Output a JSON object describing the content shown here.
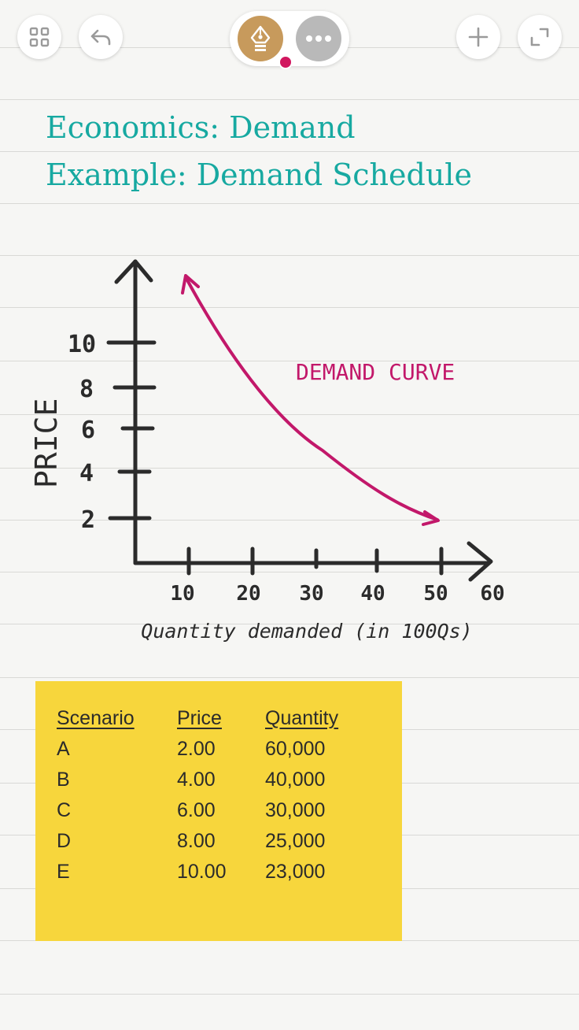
{
  "toolbar": {
    "left_buttons": [
      {
        "icon": "grid-icon"
      },
      {
        "icon": "undo-icon"
      }
    ],
    "center": {
      "pen_icon": "pen-nib-icon",
      "active_color": "#d1175f",
      "more_icon": "more-icon"
    },
    "right_buttons": [
      {
        "icon": "plus-icon"
      },
      {
        "icon": "expand-icon"
      }
    ]
  },
  "heading": {
    "line1": "Economics: Demand",
    "line2": "Example: Demand Schedule",
    "color": "#17a9a1"
  },
  "sketch": {
    "curve_label": "DEMAND CURVE",
    "y_axis_label": "PRICE",
    "x_axis_label": "Quantity demanded (in 100Qs)",
    "y_ticks": [
      "10",
      "8",
      "6",
      "4",
      "2"
    ],
    "x_ticks": [
      "10",
      "20",
      "30",
      "40",
      "50",
      "60"
    ],
    "curve_color": "#c2186a"
  },
  "sticky_note": {
    "color": "#f7d63c",
    "headers": [
      "Scenario",
      "Price",
      "Quantity"
    ],
    "rows": [
      [
        "A",
        "2.00",
        "60,000"
      ],
      [
        "B",
        "4.00",
        "40,000"
      ],
      [
        "C",
        "6.00",
        "30,000"
      ],
      [
        "D",
        "8.00",
        "25,000"
      ],
      [
        "E",
        "10.00",
        "23,000"
      ]
    ]
  }
}
